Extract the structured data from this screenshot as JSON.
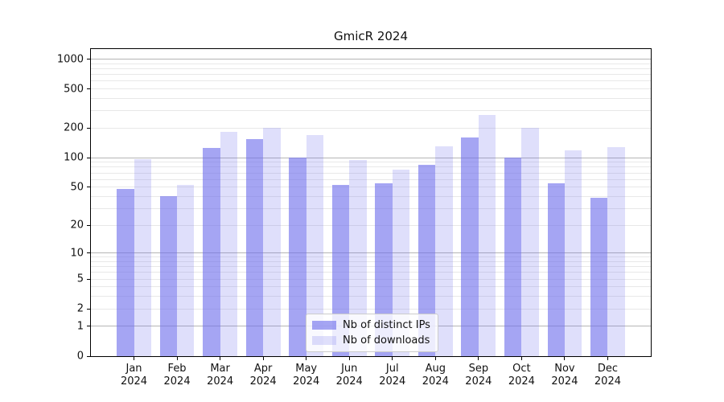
{
  "chart_data": {
    "type": "bar",
    "title": "GmicR 2024",
    "categories": [
      "Jan",
      "Feb",
      "Mar",
      "Apr",
      "May",
      "Jun",
      "Jul",
      "Aug",
      "Sep",
      "Oct",
      "Nov",
      "Dec"
    ],
    "category_year_line": "2024",
    "series": [
      {
        "name": "Nb of distinct IPs",
        "color": "#6e6eeb",
        "alpha": 0.62,
        "values": [
          48,
          40,
          125,
          155,
          100,
          53,
          55,
          85,
          161,
          100,
          55,
          39
        ]
      },
      {
        "name": "Nb of downloads",
        "color": "#6e6eeb",
        "alpha": 0.22,
        "values": [
          97,
          53,
          185,
          200,
          171,
          95,
          75,
          131,
          272,
          200,
          119,
          129
        ]
      }
    ],
    "xlabel": "",
    "ylabel": "",
    "ylim": [
      0,
      1000
    ],
    "y_axis": {
      "scale": "log1p",
      "ticks": [
        {
          "value": 0,
          "label": "0"
        },
        {
          "value": 1,
          "label": "1"
        },
        {
          "value": 2,
          "label": "2"
        },
        {
          "value": 5,
          "label": "5"
        },
        {
          "value": 10,
          "label": "10"
        },
        {
          "value": 20,
          "label": "20"
        },
        {
          "value": 50,
          "label": "50"
        },
        {
          "value": 100,
          "label": "100"
        },
        {
          "value": 200,
          "label": "200"
        },
        {
          "value": 500,
          "label": "500"
        },
        {
          "value": 1000,
          "label": "1000"
        }
      ],
      "major_gridlines": [
        1,
        10,
        100,
        1000
      ],
      "minor_gridlines": [
        2,
        3,
        4,
        5,
        6,
        7,
        8,
        9,
        20,
        30,
        40,
        50,
        60,
        70,
        80,
        90,
        200,
        300,
        400,
        500,
        600,
        700,
        800,
        900
      ]
    },
    "grid": true,
    "legend_position": "lower-center-inside",
    "colors": {
      "background": "#ffffff",
      "axis": "#000000",
      "major_grid": "#b5b5b5",
      "minor_grid": "#e8e8e8"
    }
  }
}
